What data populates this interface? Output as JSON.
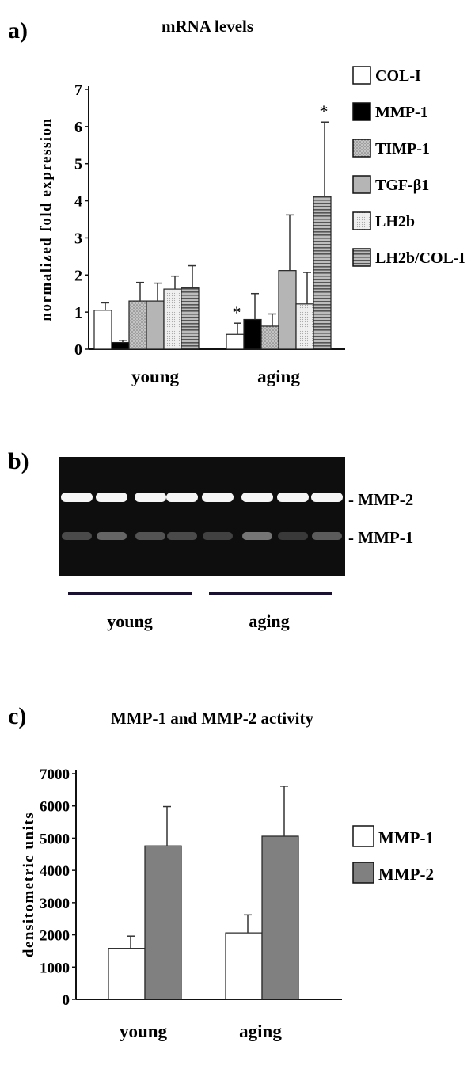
{
  "panel_a": {
    "label": "a)",
    "title": "mRNA levels",
    "ylabel": "normalized fold expression",
    "asterisk": "*"
  },
  "panel_b": {
    "label": "b)",
    "band_labels": [
      "- MMP-2",
      "- MMP-1"
    ],
    "group_labels": [
      "young",
      "aging"
    ]
  },
  "panel_c": {
    "label": "c)",
    "title": "MMP-1 and MMP-2 activity",
    "ylabel": "densitometric units"
  },
  "chart_data": [
    {
      "id": "a",
      "type": "bar",
      "title": "mRNA levels",
      "ylabel": "normalized fold expression",
      "xlabel": "",
      "categories": [
        "young",
        "aging"
      ],
      "ylim": [
        0,
        7
      ],
      "yticks": [
        "0",
        "1",
        "2",
        "3",
        "4",
        "5",
        "6",
        "7"
      ],
      "legend_position": "right",
      "grid": false,
      "series": [
        {
          "name": "COL-I",
          "values": [
            1.05,
            0.4
          ],
          "errors": [
            0.2,
            0.3
          ],
          "fill": "#ffffff",
          "pattern": "none",
          "significant": [
            false,
            true
          ]
        },
        {
          "name": "MMP-1",
          "values": [
            0.18,
            0.8
          ],
          "errors": [
            0.06,
            0.7
          ],
          "fill": "#000000",
          "pattern": "none",
          "significant": [
            false,
            false
          ]
        },
        {
          "name": "TIMP-1",
          "values": [
            1.3,
            0.62
          ],
          "errors": [
            0.5,
            0.33
          ],
          "fill": "#bdbdbd",
          "pattern": "dots",
          "significant": [
            false,
            false
          ]
        },
        {
          "name": "TGF-β1",
          "values": [
            1.3,
            2.12
          ],
          "errors": [
            0.48,
            1.5
          ],
          "fill": "#b5b5b5",
          "pattern": "none",
          "significant": [
            false,
            false
          ]
        },
        {
          "name": "LH2b",
          "values": [
            1.62,
            1.22
          ],
          "errors": [
            0.35,
            0.85
          ],
          "fill": "#ececec",
          "pattern": "fine",
          "significant": [
            false,
            false
          ]
        },
        {
          "name": "LH2b/COL-I",
          "values": [
            1.65,
            4.12
          ],
          "errors": [
            0.6,
            2.0
          ],
          "fill": "#a8a8a8",
          "pattern": "hstripes",
          "significant": [
            false,
            true
          ]
        }
      ]
    },
    {
      "id": "c",
      "type": "bar",
      "title": "MMP-1 and MMP-2 activity",
      "ylabel": "densitometric units",
      "xlabel": "",
      "categories": [
        "young",
        "aging"
      ],
      "ylim": [
        0,
        7000
      ],
      "yticks": [
        "0",
        "1000",
        "2000",
        "3000",
        "4000",
        "5000",
        "6000",
        "7000"
      ],
      "legend_position": "right",
      "grid": false,
      "series": [
        {
          "name": "MMP-1",
          "values": [
            1580,
            2060
          ],
          "errors": [
            380,
            560
          ],
          "fill": "#ffffff"
        },
        {
          "name": "MMP-2",
          "values": [
            4760,
            5060
          ],
          "errors": [
            1220,
            1550
          ],
          "fill": "#808080"
        }
      ]
    }
  ]
}
